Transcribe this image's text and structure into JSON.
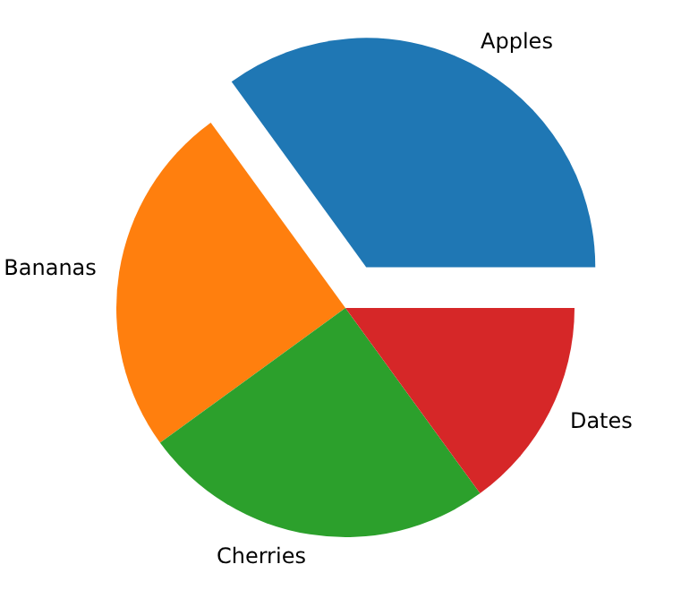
{
  "chart_data": {
    "type": "pie",
    "categories": [
      "Apples",
      "Bananas",
      "Cherries",
      "Dates"
    ],
    "values": [
      35,
      25,
      25,
      15
    ],
    "colors": [
      "#1f77b4",
      "#ff7f0e",
      "#2ca02c",
      "#d62728"
    ]
  }
}
